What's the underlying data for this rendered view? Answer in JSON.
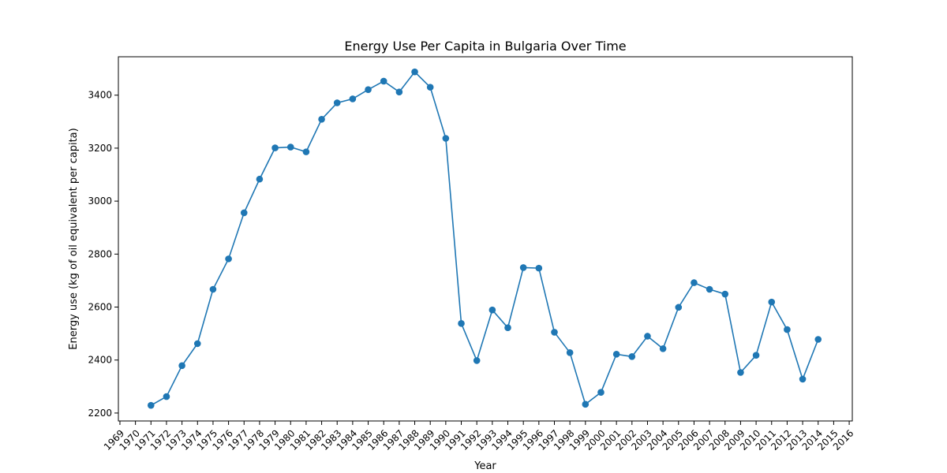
{
  "chart_data": {
    "type": "line",
    "title": "Energy Use Per Capita in Bulgaria Over Time",
    "xlabel": "Year",
    "ylabel": "Energy use (kg of oil equivalent per capita)",
    "x_ticks": [
      "1969",
      "1970",
      "1971",
      "1972",
      "1973",
      "1974",
      "1975",
      "1976",
      "1977",
      "1978",
      "1979",
      "1980",
      "1981",
      "1982",
      "1983",
      "1984",
      "1985",
      "1986",
      "1987",
      "1988",
      "1989",
      "1990",
      "1991",
      "1992",
      "1993",
      "1994",
      "1995",
      "1996",
      "1997",
      "1998",
      "1999",
      "2000",
      "2001",
      "2002",
      "2003",
      "2004",
      "2005",
      "2006",
      "2007",
      "2008",
      "2009",
      "2010",
      "2011",
      "2012",
      "2013",
      "2014",
      "2015",
      "2016"
    ],
    "y_ticks": [
      2200,
      2400,
      2600,
      2800,
      3000,
      3200,
      3400
    ],
    "xlim": [
      1968.9,
      2016.2
    ],
    "ylim": [
      2170,
      3545
    ],
    "grid": false,
    "series": [
      {
        "color": "#1f77b4",
        "x": [
          1971,
          1972,
          1973,
          1974,
          1975,
          1976,
          1977,
          1978,
          1979,
          1980,
          1981,
          1982,
          1983,
          1984,
          1985,
          1986,
          1987,
          1988,
          1989,
          1990,
          1991,
          1992,
          1993,
          1994,
          1995,
          1996,
          1997,
          1998,
          1999,
          2000,
          2001,
          2002,
          2003,
          2004,
          2005,
          2006,
          2007,
          2008,
          2009,
          2010,
          2011,
          2012,
          2013,
          2014
        ],
        "values": [
          2229,
          2262,
          2379,
          2462,
          2667,
          2782,
          2956,
          3083,
          3201,
          3204,
          3186,
          3309,
          3371,
          3386,
          3421,
          3453,
          3412,
          3488,
          3430,
          3237,
          2538,
          2398,
          2589,
          2522,
          2749,
          2747,
          2505,
          2428,
          2233,
          2278,
          2422,
          2413,
          2490,
          2443,
          2599,
          2692,
          2667,
          2649,
          2353,
          2418,
          2619,
          2515,
          2328,
          2478
        ]
      }
    ]
  }
}
